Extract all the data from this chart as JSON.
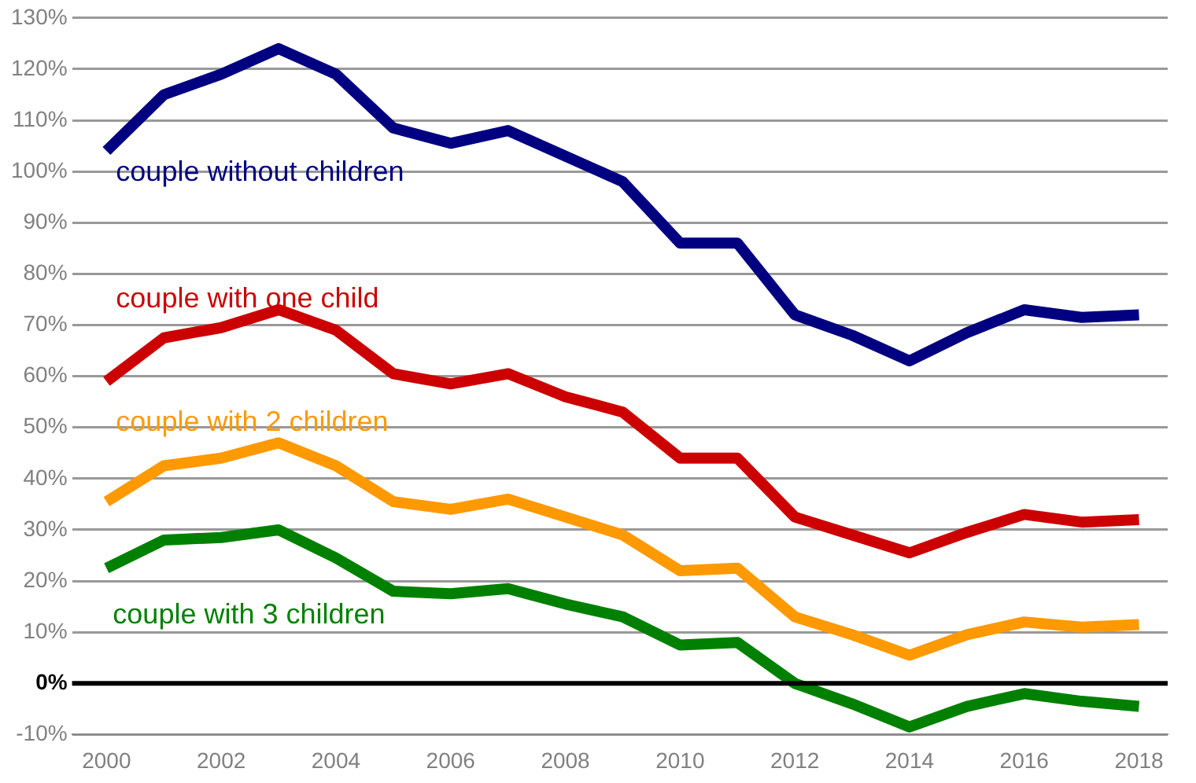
{
  "chart_data": {
    "type": "line",
    "x": [
      2000,
      2001,
      2002,
      2003,
      2004,
      2005,
      2006,
      2007,
      2008,
      2009,
      2010,
      2011,
      2012,
      2013,
      2014,
      2015,
      2016,
      2017,
      2018
    ],
    "series": [
      {
        "name": "couple without children",
        "color": "#000080",
        "values": [
          104,
          115,
          119,
          124,
          119,
          108.5,
          105.5,
          108,
          103,
          98,
          86,
          86,
          72,
          68,
          63,
          68.5,
          73,
          71.5,
          72
        ]
      },
      {
        "name": "couple with one child",
        "color": "#cc0000",
        "values": [
          59,
          67.5,
          69.5,
          73,
          69,
          60.5,
          58.5,
          60.5,
          56,
          53,
          44,
          44,
          32.5,
          29,
          25.5,
          29.5,
          33,
          31.5,
          32
        ]
      },
      {
        "name": "couple with 2 children",
        "color": "#ff9900",
        "values": [
          35.5,
          42.5,
          44,
          47,
          42.5,
          35.5,
          34,
          36,
          32.5,
          29,
          22,
          22.5,
          13,
          9.5,
          5.5,
          9.5,
          12,
          11,
          11.5
        ]
      },
      {
        "name": "couple with 3 children",
        "color": "#008000",
        "values": [
          22.5,
          28,
          28.5,
          30,
          24.5,
          18,
          17.5,
          18.5,
          15.5,
          13,
          7.5,
          8,
          0,
          -4,
          -8.5,
          -4.5,
          -2,
          -3.5,
          -4.5
        ]
      }
    ],
    "xlim": [
      1999.4,
      2018.5
    ],
    "xticks": [
      2000,
      2002,
      2004,
      2006,
      2008,
      2010,
      2012,
      2014,
      2016,
      2018
    ],
    "ylim": [
      -10,
      130
    ],
    "yticks": [
      {
        "value": -10,
        "label": "-10%"
      },
      {
        "value": 0,
        "label": "0%"
      },
      {
        "value": 10,
        "label": "10%"
      },
      {
        "value": 20,
        "label": "20%"
      },
      {
        "value": 30,
        "label": "30%"
      },
      {
        "value": 40,
        "label": "40%"
      },
      {
        "value": 50,
        "label": "50%"
      },
      {
        "value": 60,
        "label": "60%"
      },
      {
        "value": 70,
        "label": "70%"
      },
      {
        "value": 80,
        "label": "80%"
      },
      {
        "value": 90,
        "label": "90%"
      },
      {
        "value": 100,
        "label": "100%"
      },
      {
        "value": 110,
        "label": "110%"
      },
      {
        "value": 120,
        "label": "120%"
      },
      {
        "value": 130,
        "label": "130%"
      }
    ],
    "ref_lines": [
      {
        "axis": "y",
        "value": 0,
        "color": "#000000"
      }
    ],
    "grid": "y",
    "marker": "none",
    "line_style": "solid",
    "legend": false
  }
}
